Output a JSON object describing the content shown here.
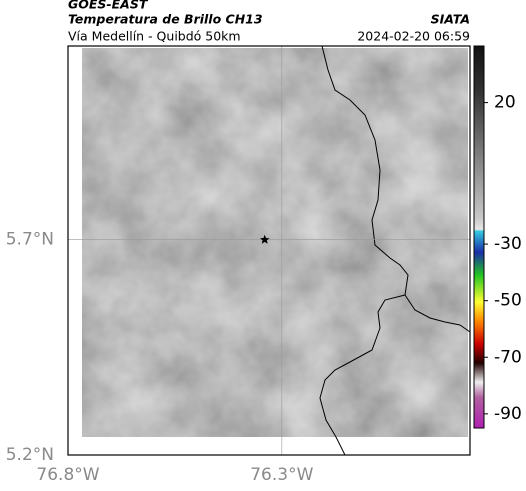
{
  "header": {
    "title": "GOES-EAST",
    "subtitle": "Temperatura de Brillo CH13",
    "region": "Vía Medellín - Quibdó 50km",
    "source": "SIATA",
    "timestamp": "2024-02-20 06:59"
  },
  "map": {
    "xlim": [
      -76.8,
      -75.86
    ],
    "ylim": [
      5.2,
      6.15
    ],
    "xticks": [
      {
        "value": -76.8,
        "label": "76.8°W"
      },
      {
        "value": -76.3,
        "label": "76.3°W"
      }
    ],
    "yticks": [
      {
        "value": 5.7,
        "label": "5.7°N"
      },
      {
        "value": 5.2,
        "label": "5.2°N"
      }
    ],
    "marker": {
      "lon": -76.34,
      "lat": 5.7
    }
  },
  "colorbar": {
    "lim": [
      40,
      -95
    ],
    "ticks": [
      20,
      -30,
      -50,
      -70,
      -90
    ]
  }
}
